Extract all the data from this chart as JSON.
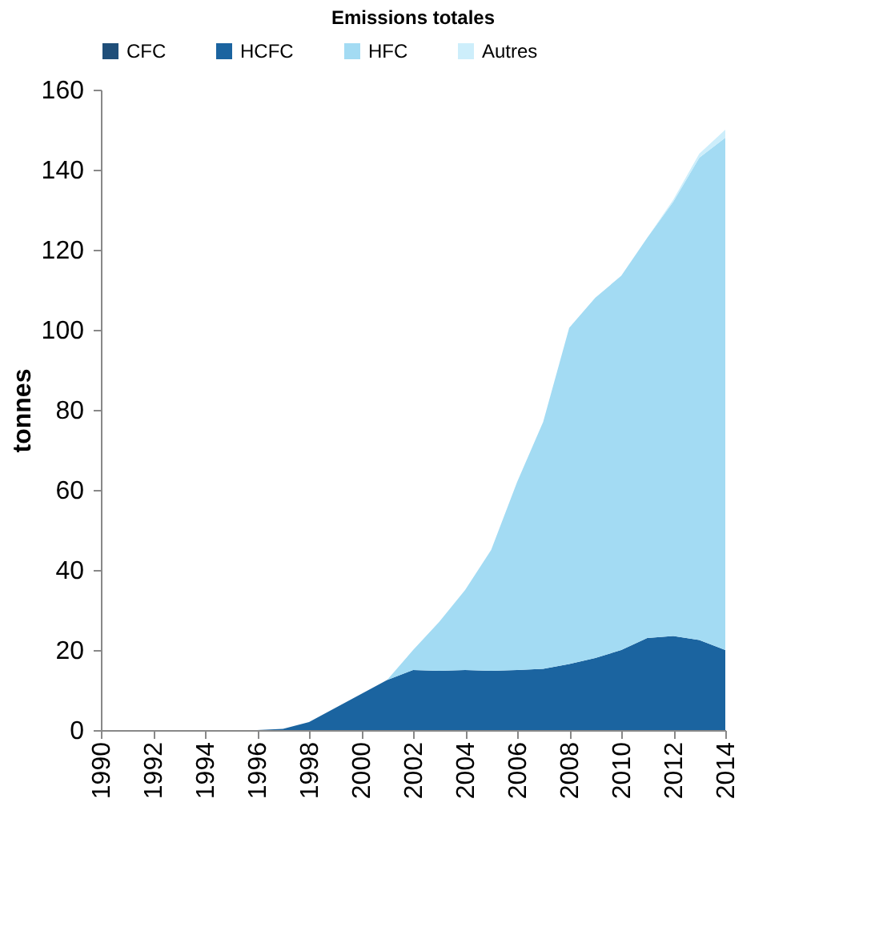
{
  "chart_data": {
    "type": "area",
    "title": "Emissions totales",
    "ylabel": "tonnes",
    "stacked": true,
    "x": [
      1990,
      1991,
      1992,
      1993,
      1994,
      1995,
      1996,
      1997,
      1998,
      1999,
      2000,
      2001,
      2002,
      2003,
      2004,
      2005,
      2006,
      2007,
      2008,
      2009,
      2010,
      2011,
      2012,
      2013,
      2014
    ],
    "series": [
      {
        "name": "CFC",
        "color": "#1f4e79",
        "values": [
          null,
          null,
          null,
          null,
          null,
          null,
          null,
          null,
          null,
          null,
          null,
          null,
          null,
          null,
          null,
          null,
          null,
          null,
          null,
          null,
          null,
          null,
          null,
          null,
          null
        ]
      },
      {
        "name": "HCFC",
        "color": "#1b64a0",
        "values": [
          0,
          0,
          0,
          0,
          0,
          0,
          0,
          0.3,
          2,
          5.5,
          9,
          12.5,
          15,
          14.8,
          15,
          14.8,
          15,
          15.3,
          16.5,
          18,
          20,
          23,
          23.5,
          22.5,
          20
        ]
      },
      {
        "name": "HFC",
        "color": "#a3dbf3",
        "values": [
          0,
          0,
          0,
          0,
          0,
          0,
          0,
          0,
          0,
          0,
          0,
          0,
          5,
          12.2,
          20,
          30.2,
          47,
          61.7,
          84,
          90,
          93.5,
          100,
          108.5,
          120.5,
          128
        ]
      },
      {
        "name": "Autres",
        "color": "#cdeefb",
        "values": [
          0,
          0,
          0,
          0,
          0,
          0,
          0,
          0,
          0,
          0,
          0,
          0,
          0,
          0,
          0,
          0,
          0,
          0,
          0,
          0,
          0,
          0,
          0.5,
          1,
          2
        ]
      }
    ],
    "xlim": [
      1990,
      2014
    ],
    "xticks": [
      1990,
      1992,
      1994,
      1996,
      1998,
      2000,
      2002,
      2004,
      2006,
      2008,
      2010,
      2012,
      2014
    ],
    "ylim": [
      0,
      160
    ],
    "yticks": [
      0,
      20,
      40,
      60,
      80,
      100,
      120,
      140,
      160
    ],
    "grid": false,
    "legend": "top"
  }
}
